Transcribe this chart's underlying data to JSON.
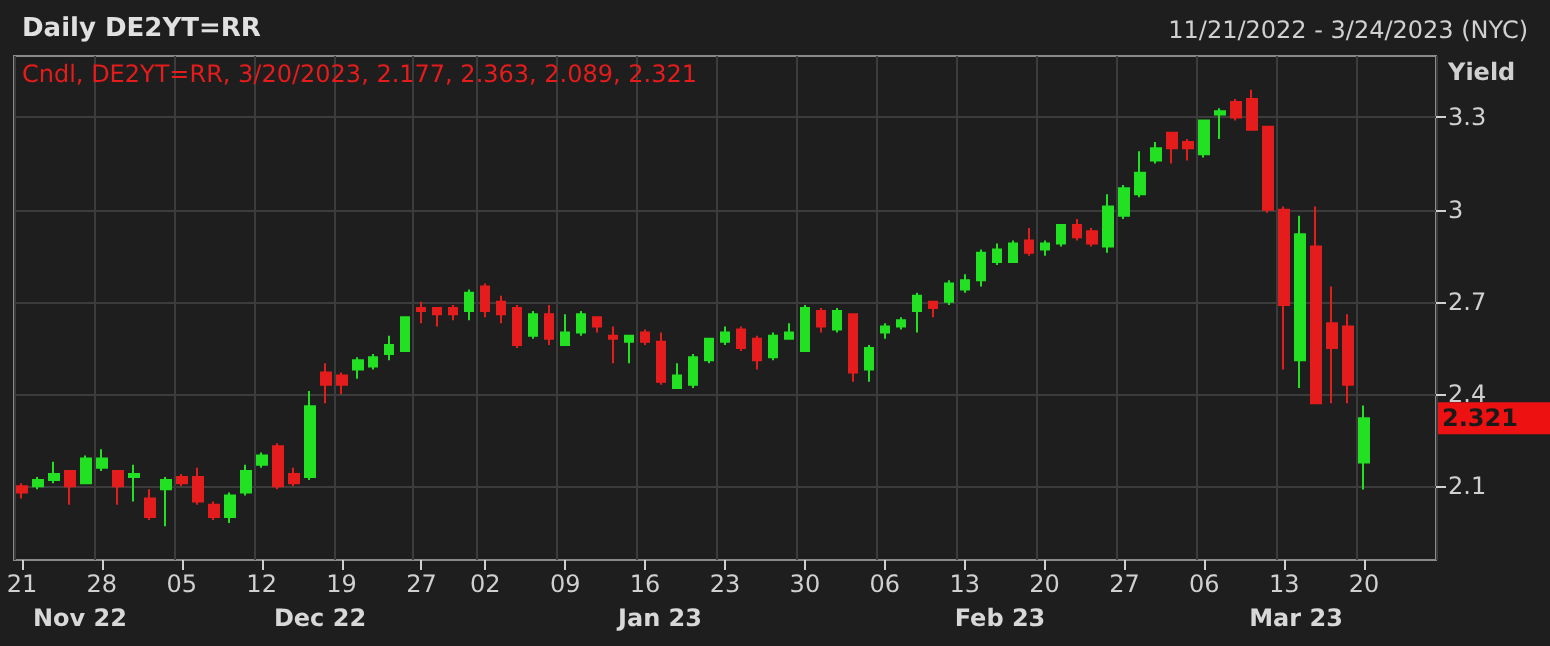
{
  "chart_data": {
    "type": "candlestick",
    "title": "Daily DE2YT=RR",
    "subtitle": "11/21/2022 - 3/24/2023 (NYC)",
    "ylabel": "Yield",
    "categories": [
      "21",
      null,
      null,
      null,
      null,
      "28",
      null,
      null,
      null,
      null,
      "05",
      null,
      null,
      null,
      null,
      "12",
      null,
      null,
      null,
      null,
      "19",
      null,
      null,
      null,
      null,
      "27",
      null,
      null,
      null,
      "02",
      null,
      null,
      null,
      null,
      "09",
      null,
      null,
      null,
      null,
      "16",
      null,
      null,
      null,
      null,
      "23",
      null,
      null,
      null,
      null,
      "30",
      null,
      null,
      null,
      null,
      "06",
      null,
      null,
      null,
      null,
      "13",
      null,
      null,
      null,
      null,
      "20",
      null,
      null,
      null,
      null,
      "27",
      null,
      null,
      null,
      null,
      "06",
      null,
      null,
      null,
      null,
      "13",
      null,
      null,
      null,
      null,
      "20"
    ],
    "ohlc": [
      [
        2.1,
        2.11,
        2.06,
        2.08
      ],
      [
        2.1,
        2.13,
        2.09,
        2.12
      ],
      [
        2.12,
        2.18,
        2.11,
        2.14
      ],
      [
        2.15,
        2.15,
        2.04,
        2.1
      ],
      [
        2.11,
        2.2,
        2.11,
        2.19
      ],
      [
        2.16,
        2.22,
        2.15,
        2.19
      ],
      [
        2.15,
        2.15,
        2.04,
        2.1
      ],
      [
        2.13,
        2.17,
        2.05,
        2.14
      ],
      [
        2.06,
        2.09,
        1.99,
        2.0
      ],
      [
        2.09,
        2.13,
        1.97,
        2.12
      ],
      [
        2.13,
        2.14,
        2.1,
        2.11
      ],
      [
        2.13,
        2.16,
        2.04,
        2.05
      ],
      [
        2.04,
        2.05,
        1.99,
        2.0
      ],
      [
        2.0,
        2.08,
        1.98,
        2.07
      ],
      [
        2.08,
        2.17,
        2.07,
        2.15
      ],
      [
        2.17,
        2.21,
        2.16,
        2.2
      ],
      [
        2.23,
        2.24,
        2.09,
        2.1
      ],
      [
        2.14,
        2.16,
        2.1,
        2.11
      ],
      [
        2.13,
        2.41,
        2.12,
        2.36
      ],
      [
        2.47,
        2.5,
        2.37,
        2.43
      ],
      [
        2.46,
        2.47,
        2.4,
        2.43
      ],
      [
        2.48,
        2.52,
        2.45,
        2.51
      ],
      [
        2.49,
        2.53,
        2.48,
        2.52
      ],
      [
        2.53,
        2.59,
        2.51,
        2.56
      ],
      [
        2.54,
        2.65,
        2.54,
        2.65
      ],
      [
        2.68,
        2.7,
        2.63,
        2.67
      ],
      [
        2.68,
        2.68,
        2.62,
        2.66
      ],
      [
        2.68,
        2.69,
        2.64,
        2.66
      ],
      [
        2.67,
        2.74,
        2.64,
        2.73
      ],
      [
        2.75,
        2.76,
        2.65,
        2.67
      ],
      [
        2.7,
        2.72,
        2.63,
        2.66
      ],
      [
        2.68,
        2.69,
        2.55,
        2.56
      ],
      [
        2.59,
        2.67,
        2.58,
        2.66
      ],
      [
        2.66,
        2.69,
        2.56,
        2.58
      ],
      [
        2.56,
        2.66,
        2.56,
        2.6
      ],
      [
        2.6,
        2.67,
        2.59,
        2.66
      ],
      [
        2.65,
        2.65,
        2.6,
        2.62
      ],
      [
        2.59,
        2.62,
        2.5,
        2.58
      ],
      [
        2.57,
        2.59,
        2.5,
        2.59
      ],
      [
        2.6,
        2.61,
        2.56,
        2.57
      ],
      [
        2.57,
        2.6,
        2.43,
        2.44
      ],
      [
        2.42,
        2.5,
        2.42,
        2.46
      ],
      [
        2.43,
        2.53,
        2.42,
        2.52
      ],
      [
        2.51,
        2.58,
        2.5,
        2.58
      ],
      [
        2.57,
        2.62,
        2.56,
        2.6
      ],
      [
        2.61,
        2.62,
        2.54,
        2.55
      ],
      [
        2.58,
        2.59,
        2.48,
        2.51
      ],
      [
        2.52,
        2.6,
        2.51,
        2.59
      ],
      [
        2.58,
        2.63,
        2.58,
        2.6
      ],
      [
        2.54,
        2.69,
        2.54,
        2.68
      ],
      [
        2.67,
        2.68,
        2.6,
        2.62
      ],
      [
        2.61,
        2.68,
        2.6,
        2.67
      ],
      [
        2.66,
        2.66,
        2.44,
        2.47
      ],
      [
        2.48,
        2.56,
        2.44,
        2.55
      ],
      [
        2.6,
        2.63,
        2.58,
        2.62
      ],
      [
        2.62,
        2.65,
        2.61,
        2.64
      ],
      [
        2.67,
        2.73,
        2.6,
        2.72
      ],
      [
        2.7,
        2.7,
        2.65,
        2.68
      ],
      [
        2.7,
        2.77,
        2.69,
        2.76
      ],
      [
        2.74,
        2.79,
        2.73,
        2.77
      ],
      [
        2.77,
        2.87,
        2.75,
        2.86
      ],
      [
        2.83,
        2.89,
        2.82,
        2.87
      ],
      [
        2.83,
        2.9,
        2.83,
        2.89
      ],
      [
        2.9,
        2.94,
        2.85,
        2.86
      ],
      [
        2.87,
        2.9,
        2.85,
        2.89
      ],
      [
        2.89,
        2.95,
        2.88,
        2.95
      ],
      [
        2.95,
        2.97,
        2.9,
        2.91
      ],
      [
        2.93,
        2.94,
        2.88,
        2.89
      ],
      [
        2.88,
        3.05,
        2.86,
        3.01
      ],
      [
        2.98,
        3.08,
        2.97,
        3.07
      ],
      [
        3.05,
        3.19,
        3.04,
        3.12
      ],
      [
        3.16,
        3.22,
        3.15,
        3.2
      ],
      [
        3.25,
        3.25,
        3.15,
        3.2
      ],
      [
        3.22,
        3.23,
        3.16,
        3.2
      ],
      [
        3.18,
        3.29,
        3.17,
        3.29
      ],
      [
        3.31,
        3.33,
        3.23,
        3.32
      ],
      [
        3.35,
        3.36,
        3.29,
        3.3
      ],
      [
        3.36,
        3.39,
        3.26,
        3.26
      ],
      [
        3.27,
        3.27,
        2.99,
        3.0
      ],
      [
        3.0,
        3.01,
        2.48,
        2.69
      ],
      [
        2.51,
        2.98,
        2.42,
        2.92
      ],
      [
        2.88,
        3.01,
        2.37,
        2.37
      ],
      [
        2.63,
        2.75,
        2.37,
        2.55
      ],
      [
        2.62,
        2.66,
        2.37,
        2.43
      ],
      [
        2.177,
        2.363,
        2.089,
        2.321
      ]
    ],
    "ylim": [
      1.86,
      3.5
    ],
    "yticks": [
      2.1,
      2.4,
      2.7,
      3,
      3.3
    ],
    "grid": true,
    "annotations": [
      "Cndl, DE2YT=RR, 3/20/2023, 2.177, 2.363, 2.089, 2.321",
      "Nov 22",
      "Dec 22",
      "Jan 23",
      "Feb 23",
      "Mar 23",
      "2.321"
    ]
  }
}
